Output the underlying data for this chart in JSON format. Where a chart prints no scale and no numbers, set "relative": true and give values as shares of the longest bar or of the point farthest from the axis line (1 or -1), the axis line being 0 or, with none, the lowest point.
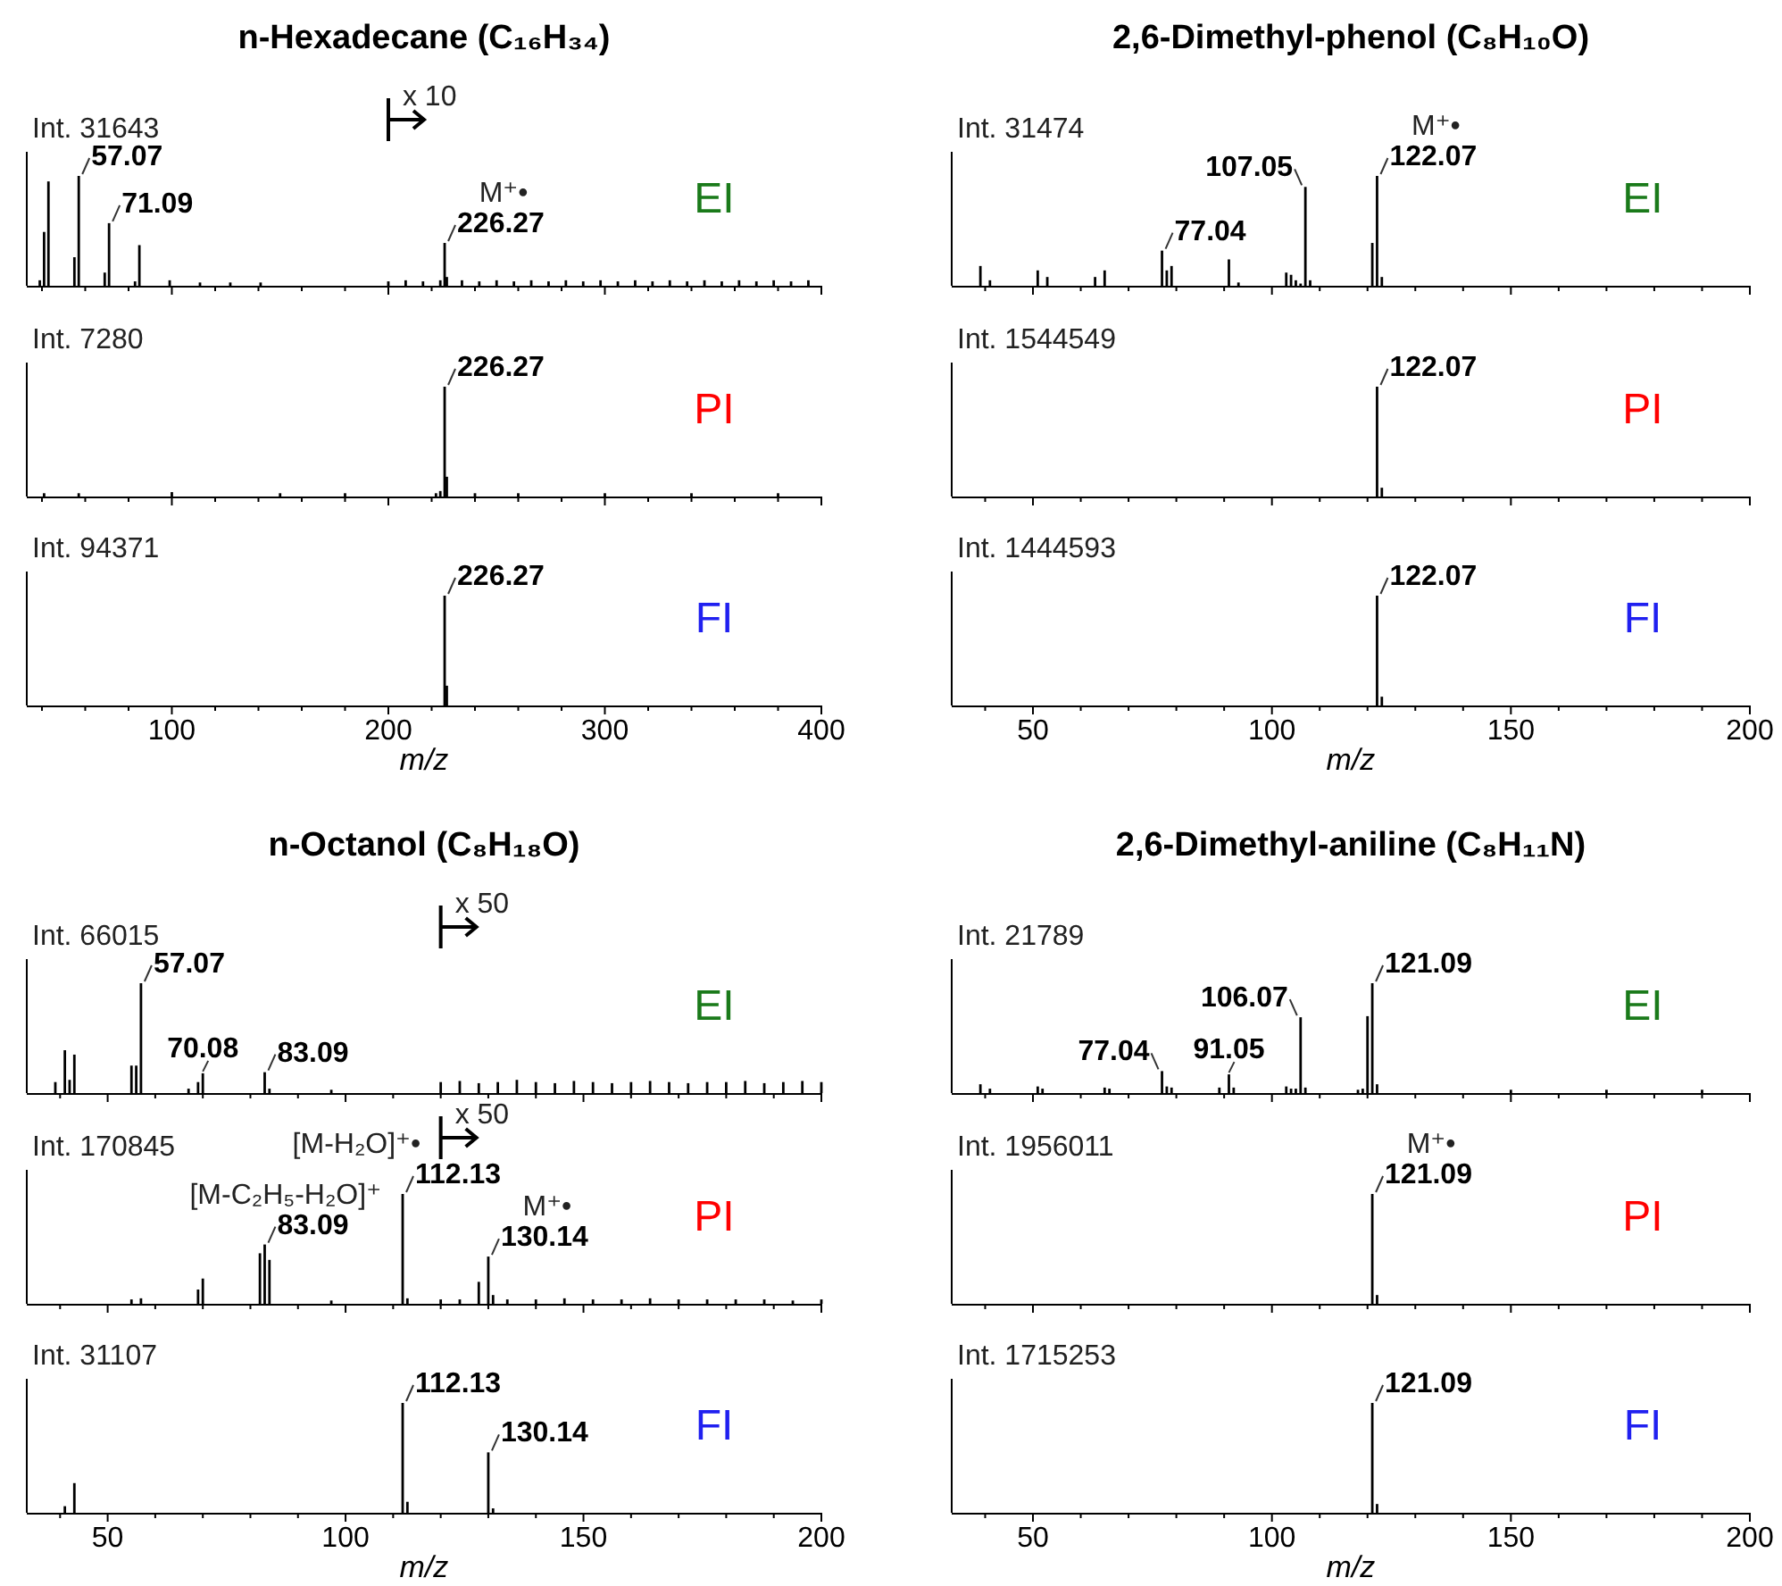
{
  "chart_data": [
    {
      "type": "bar",
      "title": "n-Hexadecane (C₁₆H₃₄)",
      "color": "#000000",
      "relative": true,
      "xlim": [
        33,
        400
      ],
      "xticks": [
        {
          "value": 40,
          "label": null
        },
        {
          "value": 60,
          "label": null
        },
        {
          "value": 80,
          "label": null
        },
        100,
        {
          "value": 120,
          "label": null
        },
        {
          "value": 140,
          "label": null
        },
        {
          "value": 160,
          "label": null
        },
        {
          "value": 180,
          "label": null
        },
        200,
        {
          "value": 220,
          "label": null
        },
        {
          "value": 240,
          "label": null
        },
        {
          "value": 260,
          "label": null
        },
        {
          "value": 280,
          "label": null
        },
        300,
        {
          "value": 320,
          "label": null
        },
        {
          "value": 340,
          "label": null
        },
        {
          "value": 360,
          "label": null
        },
        {
          "value": 380,
          "label": null
        },
        400
      ],
      "tick_labels": false,
      "x": [
        39,
        41,
        43,
        55,
        57,
        69,
        71,
        83,
        85,
        99,
        113,
        127,
        141,
        200,
        208,
        216,
        224,
        226,
        227,
        234,
        242,
        250,
        258,
        266,
        274,
        282,
        290,
        298,
        306,
        314,
        322,
        330,
        338,
        346,
        354,
        362,
        370,
        378,
        386,
        394
      ],
      "values": [
        0.05,
        0.49,
        0.95,
        0.26,
        1,
        0.12,
        0.57,
        0.04,
        0.37,
        0.05,
        0.03,
        0.03,
        0.03,
        0.04,
        0.05,
        0.04,
        0.05,
        0.39,
        0.08,
        0.05,
        0.04,
        0.05,
        0.04,
        0.05,
        0.04,
        0.05,
        0.04,
        0.05,
        0.04,
        0.05,
        0.04,
        0.05,
        0.04,
        0.05,
        0.04,
        0.05,
        0.04,
        0.05,
        0.04,
        0.05
      ],
      "ref_lines": [
        {
          "axis": "x",
          "value": 200,
          "label": "x 10"
        }
      ],
      "annotations": [
        "Int. 31643",
        "EI",
        {
          "text": "57.07",
          "x": 57.07,
          "y": 1
        },
        {
          "text": "71.09",
          "x": 71.09,
          "y": 0.57
        },
        {
          "text": "226.27",
          "x": 226.27,
          "y": 0.39
        },
        "M⁺•"
      ]
    },
    {
      "type": "bar",
      "color": "#000000",
      "relative": true,
      "xlim": [
        33,
        400
      ],
      "xticks": [
        {
          "value": 40,
          "label": null
        },
        {
          "value": 60,
          "label": null
        },
        {
          "value": 80,
          "label": null
        },
        100,
        {
          "value": 120,
          "label": null
        },
        {
          "value": 140,
          "label": null
        },
        {
          "value": 160,
          "label": null
        },
        {
          "value": 180,
          "label": null
        },
        200,
        {
          "value": 220,
          "label": null
        },
        {
          "value": 240,
          "label": null
        },
        {
          "value": 260,
          "label": null
        },
        {
          "value": 280,
          "label": null
        },
        300,
        {
          "value": 320,
          "label": null
        },
        {
          "value": 340,
          "label": null
        },
        {
          "value": 360,
          "label": null
        },
        {
          "value": 380,
          "label": null
        },
        400
      ],
      "tick_labels": false,
      "x": [
        41,
        57,
        100,
        150,
        180,
        222,
        224,
        226,
        227,
        240,
        260,
        300,
        340,
        380
      ],
      "values": [
        0.03,
        0.03,
        0.04,
        0.03,
        0.03,
        0.03,
        0.05,
        1,
        0.18,
        0.03,
        0.03,
        0.03,
        0.03,
        0.03
      ],
      "annotations": [
        "Int. 7280",
        "PI",
        {
          "text": "226.27",
          "x": 226.27,
          "y": 1
        }
      ]
    },
    {
      "type": "bar",
      "color": "#000000",
      "relative": true,
      "xlabel": "m/z",
      "xlim": [
        33,
        400
      ],
      "xticks": [
        {
          "value": 40,
          "label": null
        },
        {
          "value": 60,
          "label": null
        },
        {
          "value": 80,
          "label": null
        },
        100,
        {
          "value": 120,
          "label": null
        },
        {
          "value": 140,
          "label": null
        },
        {
          "value": 160,
          "label": null
        },
        {
          "value": 180,
          "label": null
        },
        200,
        {
          "value": 220,
          "label": null
        },
        {
          "value": 240,
          "label": null
        },
        {
          "value": 260,
          "label": null
        },
        {
          "value": 280,
          "label": null
        },
        300,
        {
          "value": 320,
          "label": null
        },
        {
          "value": 340,
          "label": null
        },
        {
          "value": 360,
          "label": null
        },
        {
          "value": 380,
          "label": null
        },
        400
      ],
      "tick_labels": "x",
      "x": [
        226,
        227
      ],
      "values": [
        1,
        0.18
      ],
      "annotations": [
        "Int. 94371",
        "FI",
        {
          "text": "226.27",
          "x": 226.27,
          "y": 1
        }
      ]
    },
    {
      "type": "bar",
      "title": "2,6-Dimethyl-phenol (C₈H₁₀O)",
      "color": "#000000",
      "relative": true,
      "xlim": [
        33,
        200
      ],
      "xticks": [
        {
          "value": 40,
          "label": null
        },
        50,
        {
          "value": 60,
          "label": null
        },
        {
          "value": 70,
          "label": null
        },
        {
          "value": 80,
          "label": null
        },
        {
          "value": 90,
          "label": null
        },
        100,
        {
          "value": 110,
          "label": null
        },
        {
          "value": 120,
          "label": null
        },
        {
          "value": 130,
          "label": null
        },
        {
          "value": 140,
          "label": null
        },
        150,
        {
          "value": 160,
          "label": null
        },
        {
          "value": 170,
          "label": null
        },
        {
          "value": 180,
          "label": null
        },
        {
          "value": 190,
          "label": null
        },
        200
      ],
      "tick_labels": false,
      "x": [
        39,
        41,
        51,
        53,
        63,
        65,
        77,
        78,
        79,
        91,
        93,
        103,
        104,
        105,
        106,
        107,
        108,
        121,
        122,
        123
      ],
      "values": [
        0.18,
        0.05,
        0.14,
        0.08,
        0.08,
        0.14,
        0.32,
        0.14,
        0.18,
        0.24,
        0.03,
        0.12,
        0.1,
        0.05,
        0.02,
        0.9,
        0.05,
        0.39,
        1,
        0.08
      ],
      "annotations": [
        "Int. 31474",
        "EI",
        {
          "text": "107.05",
          "x": 107.05,
          "y": 0.9
        },
        {
          "text": "77.04",
          "x": 77.04,
          "y": 0.32
        },
        {
          "text": "122.07",
          "x": 122.07,
          "y": 1
        },
        "M⁺•"
      ]
    },
    {
      "type": "bar",
      "color": "#000000",
      "relative": true,
      "xlim": [
        33,
        200
      ],
      "xticks": [
        {
          "value": 40,
          "label": null
        },
        50,
        {
          "value": 60,
          "label": null
        },
        {
          "value": 70,
          "label": null
        },
        {
          "value": 80,
          "label": null
        },
        {
          "value": 90,
          "label": null
        },
        100,
        {
          "value": 110,
          "label": null
        },
        {
          "value": 120,
          "label": null
        },
        {
          "value": 130,
          "label": null
        },
        {
          "value": 140,
          "label": null
        },
        150,
        {
          "value": 160,
          "label": null
        },
        {
          "value": 170,
          "label": null
        },
        {
          "value": 180,
          "label": null
        },
        {
          "value": 190,
          "label": null
        },
        200
      ],
      "tick_labels": false,
      "x": [
        122,
        123
      ],
      "values": [
        1,
        0.08
      ],
      "annotations": [
        "Int. 1544549",
        "PI",
        {
          "text": "122.07",
          "x": 122.07,
          "y": 1
        }
      ]
    },
    {
      "type": "bar",
      "color": "#000000",
      "relative": true,
      "xlabel": "m/z",
      "xlim": [
        33,
        200
      ],
      "xticks": [
        {
          "value": 40,
          "label": null
        },
        50,
        {
          "value": 60,
          "label": null
        },
        {
          "value": 70,
          "label": null
        },
        {
          "value": 80,
          "label": null
        },
        {
          "value": 90,
          "label": null
        },
        100,
        {
          "value": 110,
          "label": null
        },
        {
          "value": 120,
          "label": null
        },
        {
          "value": 130,
          "label": null
        },
        {
          "value": 140,
          "label": null
        },
        150,
        {
          "value": 160,
          "label": null
        },
        {
          "value": 170,
          "label": null
        },
        {
          "value": 180,
          "label": null
        },
        {
          "value": 190,
          "label": null
        },
        200
      ],
      "tick_labels": "x",
      "x": [
        122,
        123
      ],
      "values": [
        1,
        0.08
      ],
      "annotations": [
        "Int. 1444593",
        "FI",
        {
          "text": "122.07",
          "x": 122.07,
          "y": 1
        }
      ]
    },
    {
      "type": "bar",
      "title": "n-Octanol (C₈H₁₈O)",
      "color": "#000000",
      "relative": true,
      "xlim": [
        33,
        200
      ],
      "xticks": [
        {
          "value": 40,
          "label": null
        },
        50,
        {
          "value": 60,
          "label": null
        },
        {
          "value": 70,
          "label": null
        },
        {
          "value": 80,
          "label": null
        },
        {
          "value": 90,
          "label": null
        },
        100,
        {
          "value": 110,
          "label": null
        },
        {
          "value": 120,
          "label": null
        },
        {
          "value": 130,
          "label": null
        },
        {
          "value": 140,
          "label": null
        },
        150,
        {
          "value": 160,
          "label": null
        },
        {
          "value": 170,
          "label": null
        },
        {
          "value": 180,
          "label": null
        },
        {
          "value": 190,
          "label": null
        },
        200
      ],
      "tick_labels": false,
      "x": [
        39,
        41,
        42,
        43,
        55,
        56,
        57,
        67,
        69,
        70,
        83,
        84,
        97,
        120,
        124,
        128,
        132,
        136,
        140,
        144,
        148,
        152,
        156,
        160,
        164,
        168,
        172,
        176,
        180,
        184,
        188,
        192,
        196,
        200
      ],
      "values": [
        0.1,
        0.39,
        0.12,
        0.35,
        0.25,
        0.25,
        1,
        0.04,
        0.1,
        0.18,
        0.19,
        0.04,
        0.03,
        0.1,
        0.11,
        0.09,
        0.1,
        0.12,
        0.1,
        0.09,
        0.11,
        0.1,
        0.09,
        0.1,
        0.11,
        0.1,
        0.09,
        0.1,
        0.1,
        0.11,
        0.09,
        0.1,
        0.11,
        0.1
      ],
      "ref_lines": [
        {
          "axis": "x",
          "value": 120,
          "label": "x 50"
        }
      ],
      "annotations": [
        "Int. 66015",
        "EI",
        {
          "text": "57.07",
          "x": 57.07,
          "y": 1
        },
        {
          "text": "70.08",
          "x": 70.08,
          "y": 0.18
        },
        {
          "text": "83.09",
          "x": 83.09,
          "y": 0.19
        }
      ]
    },
    {
      "type": "bar",
      "color": "#000000",
      "relative": true,
      "xlim": [
        33,
        200
      ],
      "xticks": [
        {
          "value": 40,
          "label": null
        },
        50,
        {
          "value": 60,
          "label": null
        },
        {
          "value": 70,
          "label": null
        },
        {
          "value": 80,
          "label": null
        },
        {
          "value": 90,
          "label": null
        },
        100,
        {
          "value": 110,
          "label": null
        },
        {
          "value": 120,
          "label": null
        },
        {
          "value": 130,
          "label": null
        },
        {
          "value": 140,
          "label": null
        },
        150,
        {
          "value": 160,
          "label": null
        },
        {
          "value": 170,
          "label": null
        },
        {
          "value": 180,
          "label": null
        },
        {
          "value": 190,
          "label": null
        },
        200
      ],
      "tick_labels": false,
      "x": [
        55,
        57,
        69,
        70,
        82,
        83,
        84,
        97,
        112,
        113,
        120,
        124,
        128,
        130,
        131,
        134,
        140,
        146,
        152,
        158,
        164,
        170,
        176,
        182,
        188,
        194,
        200
      ],
      "values": [
        0.04,
        0.05,
        0.13,
        0.23,
        0.46,
        0.54,
        0.4,
        0.03,
        1,
        0.05,
        0.04,
        0.04,
        0.2,
        0.43,
        0.08,
        0.04,
        0.04,
        0.05,
        0.04,
        0.04,
        0.05,
        0.04,
        0.04,
        0.04,
        0.04,
        0.03,
        0.04
      ],
      "ref_lines": [
        {
          "axis": "x",
          "value": 120,
          "label": "x 50"
        }
      ],
      "annotations": [
        "Int. 170845",
        "PI",
        {
          "text": "83.09",
          "x": 83.09,
          "y": 0.54
        },
        "[M-C₂H₅-H₂O]⁺",
        {
          "text": "112.13",
          "x": 112.13,
          "y": 1
        },
        "[M-H₂O]⁺•",
        {
          "text": "130.14",
          "x": 130.14,
          "y": 0.43
        },
        "M⁺•"
      ]
    },
    {
      "type": "bar",
      "color": "#000000",
      "relative": true,
      "xlabel": "m/z",
      "xlim": [
        33,
        200
      ],
      "xticks": [
        {
          "value": 40,
          "label": null
        },
        50,
        {
          "value": 60,
          "label": null
        },
        {
          "value": 70,
          "label": null
        },
        {
          "value": 80,
          "label": null
        },
        {
          "value": 90,
          "label": null
        },
        100,
        {
          "value": 110,
          "label": null
        },
        {
          "value": 120,
          "label": null
        },
        {
          "value": 130,
          "label": null
        },
        {
          "value": 140,
          "label": null
        },
        150,
        {
          "value": 160,
          "label": null
        },
        {
          "value": 170,
          "label": null
        },
        {
          "value": 180,
          "label": null
        },
        {
          "value": 190,
          "label": null
        },
        200
      ],
      "tick_labels": "x",
      "x": [
        41,
        43,
        112,
        113,
        130,
        131
      ],
      "values": [
        0.06,
        0.27,
        1,
        0.1,
        0.55,
        0.04
      ],
      "annotations": [
        "Int. 31107",
        "FI",
        {
          "text": "112.13",
          "x": 112.13,
          "y": 1
        },
        {
          "text": "130.14",
          "x": 130.14,
          "y": 0.55
        }
      ]
    },
    {
      "type": "bar",
      "title": "2,6-Dimethyl-aniline (C₈H₁₁N)",
      "color": "#000000",
      "relative": true,
      "xlim": [
        33,
        200
      ],
      "xticks": [
        {
          "value": 40,
          "label": null
        },
        50,
        {
          "value": 60,
          "label": null
        },
        {
          "value": 70,
          "label": null
        },
        {
          "value": 80,
          "label": null
        },
        {
          "value": 90,
          "label": null
        },
        100,
        {
          "value": 110,
          "label": null
        },
        {
          "value": 120,
          "label": null
        },
        {
          "value": 130,
          "label": null
        },
        {
          "value": 140,
          "label": null
        },
        150,
        {
          "value": 160,
          "label": null
        },
        {
          "value": 170,
          "label": null
        },
        {
          "value": 180,
          "label": null
        },
        {
          "value": 190,
          "label": null
        },
        200
      ],
      "tick_labels": false,
      "x": [
        39,
        41,
        51,
        52,
        65,
        66,
        77,
        78,
        79,
        89,
        91,
        92,
        103,
        104,
        105,
        106,
        107,
        118,
        119,
        120,
        121,
        122,
        150,
        170,
        190
      ],
      "values": [
        0.08,
        0.04,
        0.06,
        0.04,
        0.05,
        0.04,
        0.2,
        0.06,
        0.05,
        0.05,
        0.17,
        0.05,
        0.06,
        0.04,
        0.04,
        0.69,
        0.05,
        0.03,
        0.04,
        0.7,
        1,
        0.08,
        0.03,
        0.03,
        0.03
      ],
      "annotations": [
        "Int. 21789",
        "EI",
        {
          "text": "106.07",
          "x": 106.07,
          "y": 0.69
        },
        {
          "text": "91.05",
          "x": 91.05,
          "y": 0.17
        },
        {
          "text": "77.04",
          "x": 77.04,
          "y": 0.2
        },
        {
          "text": "121.09",
          "x": 121.09,
          "y": 1
        }
      ]
    },
    {
      "type": "bar",
      "color": "#000000",
      "relative": true,
      "xlim": [
        33,
        200
      ],
      "xticks": [
        {
          "value": 40,
          "label": null
        },
        50,
        {
          "value": 60,
          "label": null
        },
        {
          "value": 70,
          "label": null
        },
        {
          "value": 80,
          "label": null
        },
        {
          "value": 90,
          "label": null
        },
        100,
        {
          "value": 110,
          "label": null
        },
        {
          "value": 120,
          "label": null
        },
        {
          "value": 130,
          "label": null
        },
        {
          "value": 140,
          "label": null
        },
        150,
        {
          "value": 160,
          "label": null
        },
        {
          "value": 170,
          "label": null
        },
        {
          "value": 180,
          "label": null
        },
        {
          "value": 190,
          "label": null
        },
        200
      ],
      "tick_labels": false,
      "x": [
        121,
        122
      ],
      "values": [
        1,
        0.08
      ],
      "annotations": [
        "Int. 1956011",
        "PI",
        {
          "text": "121.09",
          "x": 121.09,
          "y": 1
        },
        "M⁺•"
      ]
    },
    {
      "type": "bar",
      "color": "#000000",
      "relative": true,
      "xlabel": "m/z",
      "xlim": [
        33,
        200
      ],
      "xticks": [
        {
          "value": 40,
          "label": null
        },
        50,
        {
          "value": 60,
          "label": null
        },
        {
          "value": 70,
          "label": null
        },
        {
          "value": 80,
          "label": null
        },
        {
          "value": 90,
          "label": null
        },
        100,
        {
          "value": 110,
          "label": null
        },
        {
          "value": 120,
          "label": null
        },
        {
          "value": 130,
          "label": null
        },
        {
          "value": 140,
          "label": null
        },
        150,
        {
          "value": 160,
          "label": null
        },
        {
          "value": 170,
          "label": null
        },
        {
          "value": 180,
          "label": null
        },
        {
          "value": 190,
          "label": null
        },
        200
      ],
      "tick_labels": "x",
      "x": [
        121,
        122
      ],
      "values": [
        1,
        0.08
      ],
      "annotations": [
        "Int. 1715253",
        "FI",
        {
          "text": "121.09",
          "x": 121.09,
          "y": 1
        }
      ]
    }
  ]
}
